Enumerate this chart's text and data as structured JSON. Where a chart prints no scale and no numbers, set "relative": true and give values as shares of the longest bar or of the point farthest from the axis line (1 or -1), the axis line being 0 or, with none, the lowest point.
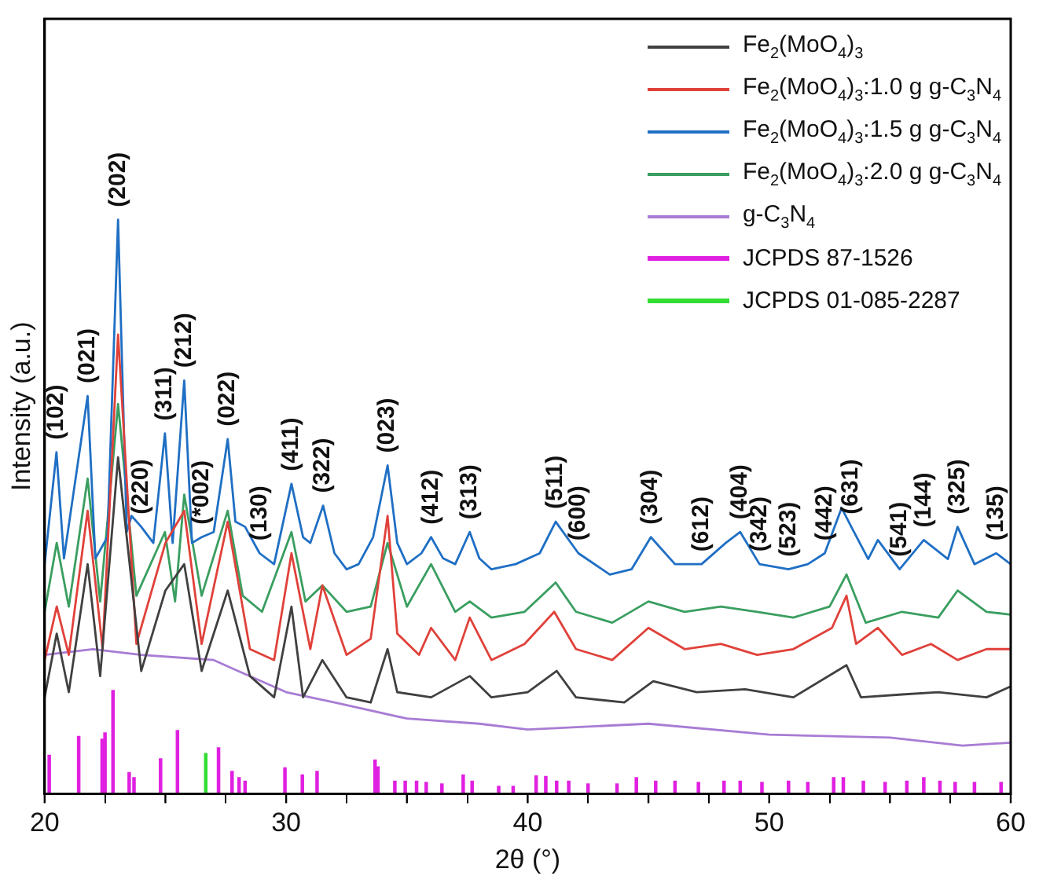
{
  "chart_data": {
    "type": "line",
    "relative": true,
    "xlabel": "2θ (°)",
    "ylabel": "Intensity (a.u.)",
    "xlim": [
      20,
      60
    ],
    "xticks": [
      20,
      {
        "value": 25,
        "label": null
      },
      30,
      {
        "value": 35,
        "label": null
      },
      40,
      {
        "value": 45,
        "label": null
      },
      50,
      {
        "value": 55,
        "label": null
      },
      60
    ],
    "grid": false,
    "legend": "top right",
    "marker": "none",
    "line_style": "solid",
    "series": [
      {
        "name": "Fe$_{2}$(MoO$_{4}$)$_{3}$",
        "color": "#404040",
        "x": [
          20,
          20.5,
          21,
          21.78,
          22.3,
          23.04,
          24,
          25,
          25.78,
          26.5,
          27.58,
          28.5,
          29.5,
          30.22,
          30.7,
          31.5,
          32.5,
          33.5,
          34.2,
          34.6,
          36,
          37.6,
          38.5,
          40,
          41.2,
          42,
          44,
          45.2,
          47,
          49,
          51,
          53.2,
          53.8,
          55.5,
          57,
          59,
          60
        ],
        "values": [
          0.168,
          0.279,
          0.177,
          0.4,
          0.205,
          0.586,
          0.214,
          0.354,
          0.4,
          0.214,
          0.354,
          0.205,
          0.168,
          0.326,
          0.168,
          0.233,
          0.168,
          0.159,
          0.252,
          0.177,
          0.168,
          0.205,
          0.168,
          0.177,
          0.214,
          0.168,
          0.159,
          0.196,
          0.177,
          0.182,
          0.168,
          0.224,
          0.168,
          0.173,
          0.177,
          0.168,
          0.187
        ]
      },
      {
        "name": "Fe$_{2}$(MoO$_{4}$)$_{3}$:1.0 g g-C$_{3}$N$_{4}$",
        "color": "#e0413a",
        "x": [
          20,
          20.5,
          21,
          21.78,
          22.4,
          23.04,
          23.8,
          25,
          25.78,
          26.5,
          27.58,
          28.5,
          29.5,
          30.22,
          31,
          31.5,
          32.5,
          33.5,
          34.2,
          34.6,
          35.5,
          36,
          37,
          37.6,
          38.5,
          39.87,
          41.1,
          42,
          43.5,
          45,
          46.5,
          48,
          49.5,
          51,
          52.6,
          53.2,
          53.6,
          54.5,
          55.5,
          56.7,
          57.8,
          59,
          60
        ],
        "values": [
          0.233,
          0.326,
          0.242,
          0.493,
          0.252,
          0.8,
          0.261,
          0.437,
          0.493,
          0.261,
          0.474,
          0.252,
          0.233,
          0.419,
          0.252,
          0.363,
          0.242,
          0.27,
          0.484,
          0.279,
          0.242,
          0.289,
          0.233,
          0.307,
          0.233,
          0.261,
          0.317,
          0.252,
          0.233,
          0.289,
          0.252,
          0.261,
          0.242,
          0.252,
          0.289,
          0.345,
          0.261,
          0.289,
          0.242,
          0.261,
          0.233,
          0.252,
          0.252
        ]
      },
      {
        "name": "Fe$_{2}$(MoO$_{4}$)$_{3}$:1.5 g g-C$_{3}$N$_{4}$",
        "color": "#1f6fc4",
        "x": [
          20,
          20.49,
          20.8,
          21.78,
          22.1,
          22.6,
          23.04,
          23.4,
          23.6,
          24,
          24.5,
          24.98,
          25.3,
          25.78,
          26.1,
          26.5,
          27,
          27.58,
          27.9,
          28.3,
          28.9,
          29.5,
          30.22,
          30.7,
          31,
          31.53,
          32,
          32.5,
          33,
          33.6,
          34.2,
          34.6,
          35,
          35.6,
          36,
          36.5,
          37,
          37.6,
          38,
          38.5,
          39.5,
          40.5,
          41.16,
          42.1,
          43.4,
          44.3,
          45.1,
          46.1,
          47.2,
          48.2,
          48.8,
          49.6,
          50.8,
          51.6,
          52.3,
          53,
          53.4,
          54.1,
          54.5,
          55.4,
          56.4,
          57.4,
          57.8,
          58.5,
          59.4,
          60
        ],
        "values": [
          0.4,
          0.595,
          0.41,
          0.693,
          0.41,
          0.447,
          1,
          0.456,
          0.484,
          0.465,
          0.437,
          0.628,
          0.437,
          0.72,
          0.437,
          0.447,
          0.456,
          0.618,
          0.474,
          0.465,
          0.419,
          0.4,
          0.54,
          0.447,
          0.437,
          0.502,
          0.419,
          0.391,
          0.4,
          0.447,
          0.572,
          0.437,
          0.4,
          0.419,
          0.447,
          0.41,
          0.4,
          0.456,
          0.41,
          0.391,
          0.4,
          0.419,
          0.474,
          0.419,
          0.382,
          0.391,
          0.447,
          0.4,
          0.4,
          0.437,
          0.456,
          0.4,
          0.391,
          0.4,
          0.419,
          0.498,
          0.465,
          0.409,
          0.442,
          0.391,
          0.442,
          0.409,
          0.465,
          0.4,
          0.419,
          0.4
        ]
      },
      {
        "name": "Fe$_{2}$(MoO$_{4}$)$_{3}$:2.0 g g-C$_{3}$N$_{4}$",
        "color": "#3a9e60",
        "x": [
          20,
          20.5,
          21,
          21.78,
          22.3,
          23.04,
          23.8,
          24.98,
          25.4,
          25.78,
          26.5,
          27.58,
          28.2,
          29,
          30.22,
          30.8,
          31.5,
          32.5,
          33.5,
          34.2,
          35,
          36,
          37,
          37.6,
          38.5,
          39.87,
          41.16,
          42,
          43.5,
          45,
          46.5,
          48,
          49.5,
          51,
          52.5,
          53.2,
          54,
          55.5,
          57,
          57.8,
          59,
          60
        ],
        "values": [
          0.317,
          0.437,
          0.326,
          0.549,
          0.335,
          0.679,
          0.345,
          0.456,
          0.335,
          0.521,
          0.345,
          0.493,
          0.345,
          0.317,
          0.456,
          0.335,
          0.363,
          0.317,
          0.326,
          0.437,
          0.326,
          0.4,
          0.317,
          0.335,
          0.307,
          0.317,
          0.368,
          0.317,
          0.298,
          0.335,
          0.317,
          0.326,
          0.317,
          0.307,
          0.326,
          0.382,
          0.298,
          0.317,
          0.307,
          0.354,
          0.317,
          0.312
        ]
      },
      {
        "name": "g-C$_{3}$N$_{4}$",
        "color": "#a87cd4",
        "x": [
          20,
          22,
          24,
          27,
          28,
          30,
          32,
          35,
          38,
          40,
          45,
          50,
          55,
          58,
          60
        ],
        "values": [
          0.242,
          0.252,
          0.242,
          0.233,
          0.214,
          0.177,
          0.159,
          0.131,
          0.122,
          0.112,
          0.122,
          0.103,
          0.098,
          0.084,
          0.089
        ]
      },
      {
        "name": "JCPDS 87-1526",
        "type": "bar",
        "color": "#e020e0",
        "x": [
          20.19,
          21.41,
          22.38,
          22.5,
          22.83,
          23.5,
          23.7,
          24.8,
          25.5,
          27.2,
          27.76,
          28.05,
          28.3,
          29.95,
          30.67,
          31.28,
          33.68,
          33.8,
          34.5,
          34.93,
          35.4,
          35.8,
          36.45,
          37.33,
          37.7,
          38.8,
          39.4,
          40.35,
          40.75,
          41.2,
          41.7,
          42.5,
          43.7,
          44.5,
          45.3,
          46.1,
          47.07,
          48.13,
          48.8,
          49.7,
          50.8,
          51.6,
          52.67,
          53.07,
          53.9,
          54.8,
          55.7,
          56.4,
          57.07,
          57.7,
          58.5,
          59.6
        ],
        "values": [
          0.067,
          0.1,
          0.095,
          0.106,
          0.18,
          0.037,
          0.028,
          0.061,
          0.11,
          0.08,
          0.039,
          0.028,
          0.022,
          0.045,
          0.033,
          0.039,
          0.059,
          0.047,
          0.022,
          0.022,
          0.022,
          0.02,
          0.017,
          0.033,
          0.022,
          0.013,
          0.013,
          0.031,
          0.03,
          0.022,
          0.022,
          0.017,
          0.017,
          0.028,
          0.022,
          0.022,
          0.02,
          0.022,
          0.022,
          0.02,
          0.022,
          0.02,
          0.028,
          0.028,
          0.022,
          0.02,
          0.022,
          0.028,
          0.022,
          0.02,
          0.02,
          0.02
        ]
      },
      {
        "name": "JCPDS 01-085-2287",
        "type": "bar",
        "color": "#33dd33",
        "x": [
          26.67
        ],
        "values": [
          0.07
        ]
      }
    ],
    "annotations": [
      {
        "text": "(102)",
        "x": 20.49,
        "y": 0.595
      },
      {
        "text": "(021)",
        "x": 21.78,
        "y": 0.693
      },
      {
        "text": "(202)",
        "x": 23.04,
        "y": 1
      },
      {
        "text": "(220)",
        "x": 24,
        "y": 0.465
      },
      {
        "text": "(311)",
        "x": 24.98,
        "y": 0.628
      },
      {
        "text": "(212)",
        "x": 25.78,
        "y": 0.72
      },
      {
        "text": "(*002)",
        "x": 26.5,
        "y": 0.447
      },
      {
        "text": "(022)",
        "x": 27.58,
        "y": 0.618
      },
      {
        "text": "(130)",
        "x": 28.9,
        "y": 0.419
      },
      {
        "text": "(411)",
        "x": 30.22,
        "y": 0.54
      },
      {
        "text": "(322)",
        "x": 31.53,
        "y": 0.502
      },
      {
        "text": "(023)",
        "x": 34.2,
        "y": 0.572
      },
      {
        "text": "(412)",
        "x": 36,
        "y": 0.447
      },
      {
        "text": "(313)",
        "x": 37.6,
        "y": 0.456
      },
      {
        "text": "(511)",
        "x": 41.16,
        "y": 0.474
      },
      {
        "text": "(600)",
        "x": 42.1,
        "y": 0.419
      },
      {
        "text": "(304)",
        "x": 45.1,
        "y": 0.447
      },
      {
        "text": "(612)",
        "x": 47.2,
        "y": 0.4
      },
      {
        "text": "(404)",
        "x": 48.8,
        "y": 0.456
      },
      {
        "text": "(342)",
        "x": 49.6,
        "y": 0.4
      },
      {
        "text": "(523)",
        "x": 50.8,
        "y": 0.391
      },
      {
        "text": "(442)",
        "x": 52.3,
        "y": 0.419
      },
      {
        "text": "(631)",
        "x": 53.4,
        "y": 0.465
      },
      {
        "text": "(541)",
        "x": 55.4,
        "y": 0.391
      },
      {
        "text": "(144)",
        "x": 56.4,
        "y": 0.442
      },
      {
        "text": "(325)",
        "x": 57.8,
        "y": 0.465
      },
      {
        "text": "(135)",
        "x": 59.4,
        "y": 0.419
      }
    ]
  }
}
